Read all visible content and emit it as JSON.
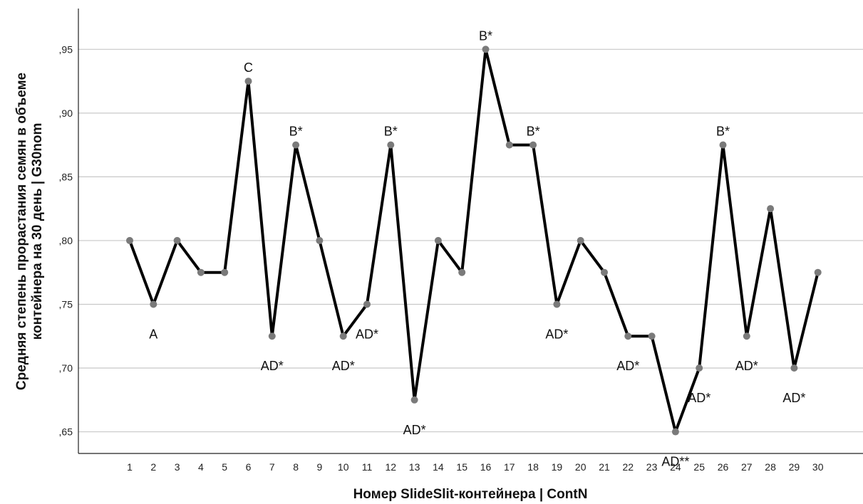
{
  "chart_data": {
    "type": "line",
    "title": "",
    "xlabel": "Номер SlideSlit-контейнера | ContN",
    "ylabel_lines": [
      "Средняя степень прорастания семян в объеме",
      "контейнера на 30 день | G30nom"
    ],
    "x": [
      "1",
      "2",
      "3",
      "4",
      "5",
      "6",
      "7",
      "8",
      "9",
      "10",
      "11",
      "12",
      "13",
      "14",
      "15",
      "16",
      "17",
      "18",
      "19",
      "20",
      "21",
      "22",
      "23",
      "24",
      "25",
      "26",
      "27",
      "28",
      "29",
      "30"
    ],
    "ylim": [
      0.633,
      0.982
    ],
    "yticks": [
      0.65,
      0.7,
      0.75,
      0.8,
      0.85,
      0.9,
      0.95
    ],
    "ytick_labels": [
      ",65",
      ",70",
      ",75",
      ",80",
      ",85",
      ",90",
      ",95"
    ],
    "grid": "horizontal",
    "series": [
      {
        "values": [
          0.8,
          0.75,
          0.8,
          0.775,
          0.775,
          0.925,
          0.725,
          0.875,
          0.8,
          0.725,
          0.75,
          0.875,
          0.675,
          0.8,
          0.775,
          0.95,
          0.875,
          0.875,
          0.75,
          0.8,
          0.775,
          0.725,
          0.725,
          0.65,
          0.7,
          0.875,
          0.725,
          0.825,
          0.7,
          0.775
        ]
      }
    ],
    "annotations": [
      {
        "x": "2",
        "text": "A",
        "position": "below"
      },
      {
        "x": "6",
        "text": "C",
        "position": "above"
      },
      {
        "x": "7",
        "text": "AD*",
        "position": "below"
      },
      {
        "x": "8",
        "text": "B*",
        "position": "above"
      },
      {
        "x": "10",
        "text": "AD*",
        "position": "below"
      },
      {
        "x": "11",
        "text": "AD*",
        "position": "below"
      },
      {
        "x": "12",
        "text": "B*",
        "position": "above"
      },
      {
        "x": "13",
        "text": "AD*",
        "position": "below"
      },
      {
        "x": "16",
        "text": "B*",
        "position": "above"
      },
      {
        "x": "18",
        "text": "B*",
        "position": "above"
      },
      {
        "x": "19",
        "text": "AD*",
        "position": "below"
      },
      {
        "x": "22",
        "text": "AD*",
        "position": "below"
      },
      {
        "x": "24",
        "text": "AD**",
        "position": "below"
      },
      {
        "x": "25",
        "text": "AD*",
        "position": "below"
      },
      {
        "x": "26",
        "text": "B*",
        "position": "above"
      },
      {
        "x": "27",
        "text": "AD*",
        "position": "below"
      },
      {
        "x": "29",
        "text": "AD*",
        "position": "below"
      }
    ],
    "colors": {
      "line": "#000000",
      "point": "#7a7a7a",
      "grid": "#c8c8c8"
    }
  }
}
